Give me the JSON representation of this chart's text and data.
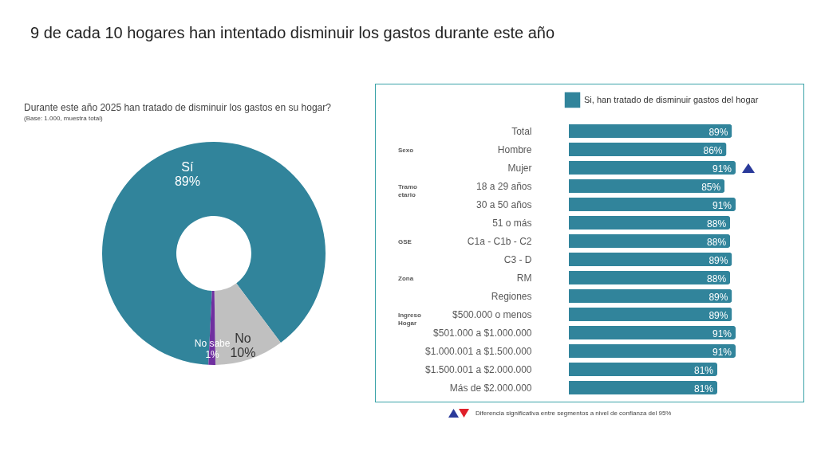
{
  "chart_data": [
    {
      "type": "donut",
      "title": "9 de cada 10 hogares han intentado disminuir los gastos durante este año",
      "subtitle": "Durante este año 2025 han tratado de disminuir los gastos en su hogar?",
      "annotations": [
        "(Base: 1.000, muestra total)"
      ],
      "categories": [
        "Sí",
        "No",
        "No sabe"
      ],
      "values": [
        89,
        10,
        1
      ],
      "colors": [
        "#31849b",
        "#c0c0c0",
        "#7030a0"
      ],
      "value_labels": [
        "89%",
        "10%",
        "1%"
      ]
    },
    {
      "type": "bar",
      "orientation": "horizontal",
      "legend": "top right",
      "categories": [
        "Total",
        "Hombre",
        "Mujer",
        "18 a 29 años",
        "30 a 50 años",
        "51 o más",
        "C1a - C1b - C2",
        "C3 - D",
        "RM",
        "Regiones",
        "$500.000 o menos",
        "$501.000 a $1.000.000",
        "$1.000.001 a $1.500.000",
        "$1.500.001 a $2.000.000",
        "Más de $2.000.000"
      ],
      "series": [
        {
          "name": "Si, han tratado de disminuir gastos del hogar",
          "color": "#31849b",
          "values": [
            89,
            86,
            91,
            85,
            91,
            88,
            88,
            89,
            88,
            89,
            89,
            91,
            91,
            81,
            81
          ],
          "value_labels": [
            "89%",
            "86%",
            "91%",
            "85%",
            "91%",
            "88%",
            "88%",
            "89%",
            "88%",
            "89%",
            "89%",
            "91%",
            "91%",
            "81%",
            "81%"
          ]
        }
      ],
      "annotations": [
        "Sexo",
        "Tramo etario",
        "GSE",
        "Zona",
        "Ingreso Hogar",
        "Diferencia significativa entre segmentos a nivel de confianza del 95%"
      ]
    }
  ]
}
